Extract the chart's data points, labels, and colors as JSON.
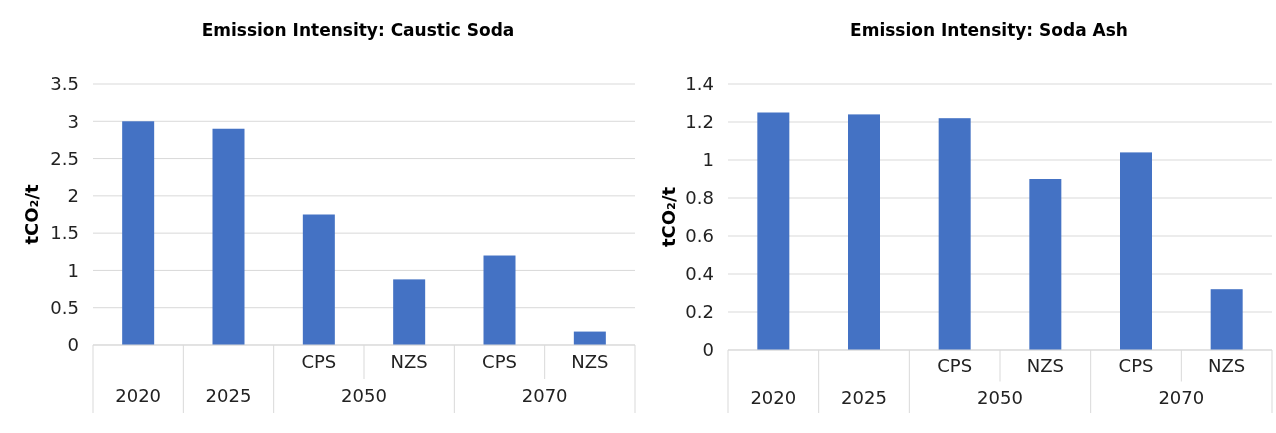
{
  "chart_data": [
    {
      "type": "bar",
      "title": "Emission Intensity: Caustic Soda",
      "ylabel": "tCO₂/t",
      "categories": [
        "2020",
        "2025",
        "CPS",
        "NZS",
        "CPS",
        "NZS"
      ],
      "annotations": [
        "2050",
        "2070"
      ],
      "values": [
        3.0,
        2.9,
        1.75,
        0.88,
        1.2,
        0.18
      ],
      "color": "#4472c4",
      "ylim": [
        0,
        3.5
      ],
      "yticks": [
        0,
        0.5,
        1,
        1.5,
        2,
        2.5,
        3,
        3.5
      ],
      "grid": "y"
    },
    {
      "type": "bar",
      "title": "Emission Intensity: Soda Ash",
      "ylabel": "tCO₂/t",
      "categories": [
        "2020",
        "2025",
        "CPS",
        "NZS",
        "CPS",
        "NZS"
      ],
      "annotations": [
        "2050",
        "2070"
      ],
      "values": [
        1.25,
        1.24,
        1.22,
        0.9,
        1.04,
        0.32
      ],
      "color": "#4472c4",
      "ylim": [
        0,
        1.4
      ],
      "yticks": [
        0,
        0.2,
        0.4,
        0.6,
        0.8,
        1,
        1.2,
        1.4
      ],
      "grid": "y"
    }
  ]
}
